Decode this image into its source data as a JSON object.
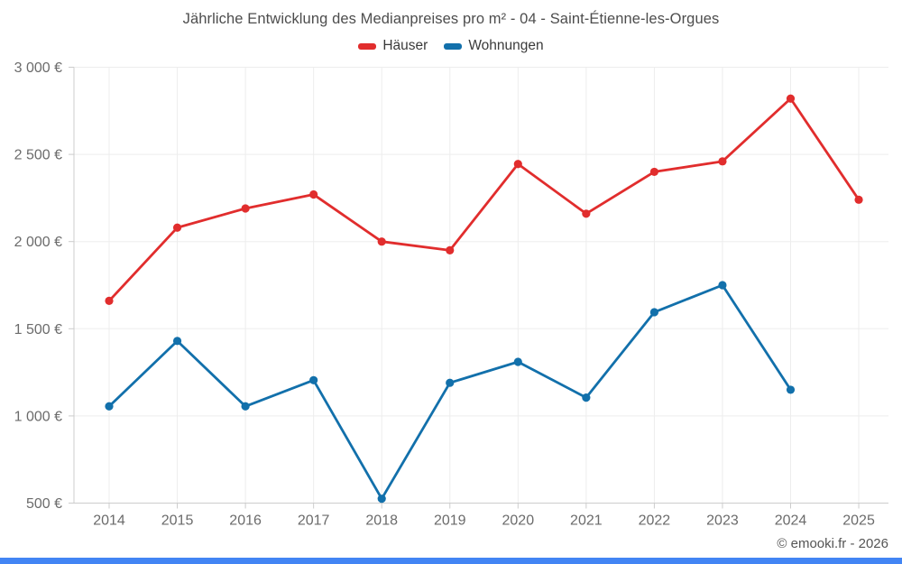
{
  "title": "Jährliche Entwicklung des Medianpreises pro m² - 04 - Saint-Étienne-les-Orgues",
  "footer": "© emooki.fr - 2026",
  "legend": [
    {
      "label": "Häuser",
      "color": "#e12d2d"
    },
    {
      "label": "Wohnungen",
      "color": "#1270ab"
    }
  ],
  "colors": {
    "hauser_line": "#e12d2d",
    "wohnungen_line": "#1270ab",
    "grid": "#ededed",
    "axis": "#cccccc",
    "tick_label": "#6b6b6b",
    "accent_bar": "#4285f4"
  },
  "chart_data": {
    "type": "line",
    "title": "Jährliche Entwicklung des Medianpreises pro m² - 04 - Saint-Étienne-les-Orgues",
    "xlabel": "",
    "ylabel": "",
    "x": [
      2014,
      2015,
      2016,
      2017,
      2018,
      2019,
      2020,
      2021,
      2022,
      2023,
      2024,
      2025
    ],
    "series": [
      {
        "name": "Häuser",
        "color": "#e12d2d",
        "values": [
          1660,
          2080,
          2190,
          2270,
          2000,
          1950,
          2445,
          2160,
          2400,
          2460,
          2820,
          2240
        ]
      },
      {
        "name": "Wohnungen",
        "color": "#1270ab",
        "values": [
          1055,
          1430,
          1055,
          1205,
          525,
          1190,
          1310,
          1105,
          1595,
          1750,
          1150,
          null
        ]
      }
    ],
    "ylim": [
      500,
      3000
    ],
    "yticks": [
      {
        "value": 500,
        "label": "500 €"
      },
      {
        "value": 1000,
        "label": "1 000 €"
      },
      {
        "value": 1500,
        "label": "1 500 €"
      },
      {
        "value": 2000,
        "label": "2 000 €"
      },
      {
        "value": 2500,
        "label": "2 500 €"
      },
      {
        "value": 3000,
        "label": "3 000 €"
      }
    ],
    "grid": true,
    "legend_position": "top",
    "unit": "€"
  }
}
